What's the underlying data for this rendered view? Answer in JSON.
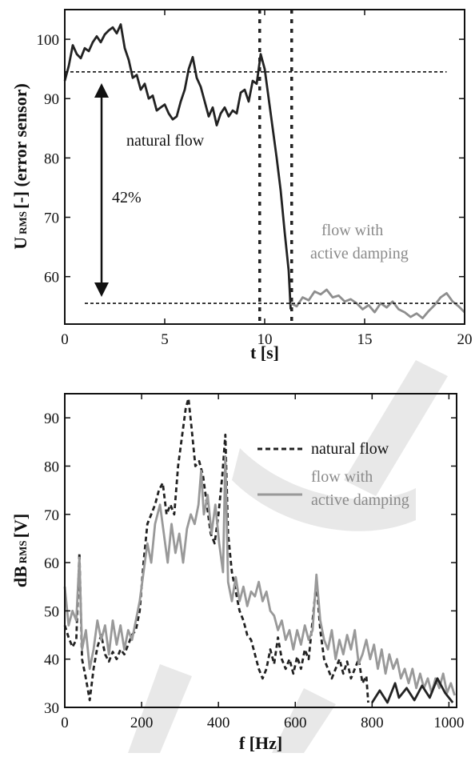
{
  "chart_data": [
    {
      "type": "line",
      "xlabel": "t [s]",
      "ylabel_main": "U",
      "ylabel_sub": "RMS",
      "ylabel_rest": "[-] (error sensor)",
      "xlim": [
        0,
        20
      ],
      "ylim": [
        52,
        105
      ],
      "xticks": [
        0,
        5,
        10,
        15,
        20
      ],
      "yticks": [
        60,
        70,
        80,
        90,
        100
      ],
      "grid": false,
      "reference_lines": {
        "upper": 94.5,
        "lower": 55.5,
        "control_on": 9.75,
        "control_settled": 11.35
      },
      "annotations": {
        "reduction": "42%",
        "natural": "natural flow",
        "damped_line1": "flow with",
        "damped_line2": "active damping"
      },
      "series": [
        {
          "color": "#222222",
          "x": [
            0,
            0.2,
            0.4,
            0.6,
            0.8,
            1.0,
            1.2,
            1.4,
            1.6,
            1.8,
            2.0,
            2.2,
            2.4,
            2.6,
            2.8,
            3.0,
            3.2,
            3.4,
            3.6,
            3.8,
            4.0,
            4.2,
            4.4,
            4.6,
            4.8,
            5.0,
            5.2,
            5.4,
            5.6,
            5.8,
            6.0,
            6.2,
            6.4,
            6.6,
            6.8,
            7.0,
            7.2,
            7.4,
            7.6,
            7.8,
            8.0,
            8.2,
            8.4,
            8.6,
            8.8,
            9.0,
            9.2,
            9.4,
            9.6,
            9.8,
            10.0,
            10.2,
            10.4,
            10.6,
            10.8,
            11.0,
            11.2,
            11.3
          ],
          "y": [
            93.0,
            95.5,
            99.0,
            97.5,
            96.8,
            98.5,
            98.0,
            99.5,
            100.5,
            99.5,
            100.8,
            101.5,
            102.0,
            101.0,
            102.5,
            98.5,
            96.5,
            93.5,
            94.0,
            91.5,
            92.5,
            90.0,
            90.5,
            88.0,
            88.5,
            89.0,
            87.5,
            86.5,
            87.0,
            89.5,
            91.5,
            95.0,
            97.0,
            93.5,
            92.0,
            89.5,
            87.0,
            88.5,
            85.5,
            87.5,
            88.5,
            87.0,
            88.0,
            87.5,
            91.0,
            91.5,
            89.5,
            93.0,
            92.5,
            97.5,
            95.0,
            90.0,
            85.0,
            80.0,
            74.5,
            67.5,
            61.0,
            54.5
          ]
        },
        {
          "color": "#8e8e8e",
          "x": [
            11.3,
            11.6,
            11.9,
            12.2,
            12.5,
            12.8,
            13.1,
            13.4,
            13.7,
            14.0,
            14.3,
            14.6,
            14.9,
            15.2,
            15.5,
            15.8,
            16.1,
            16.4,
            16.7,
            17.0,
            17.3,
            17.6,
            17.9,
            18.2,
            18.5,
            18.8,
            19.1,
            19.4,
            19.7,
            20.0
          ],
          "y": [
            55.5,
            55.0,
            56.5,
            56.0,
            57.5,
            57.0,
            57.8,
            56.5,
            56.8,
            55.8,
            56.2,
            55.5,
            54.5,
            55.2,
            54.0,
            55.5,
            54.8,
            55.8,
            54.5,
            54.0,
            53.2,
            53.8,
            53.0,
            54.2,
            55.2,
            56.5,
            57.2,
            55.8,
            55.0,
            54.0
          ]
        }
      ]
    },
    {
      "type": "line",
      "xlabel": "f [Hz]",
      "ylabel_main": "dB",
      "ylabel_sub": "RMS",
      "ylabel_rest": "[V]",
      "xlim": [
        0,
        1020
      ],
      "ylim": [
        30,
        95
      ],
      "xticks": [
        0,
        200,
        400,
        600,
        800,
        1000
      ],
      "yticks": [
        30,
        40,
        50,
        60,
        70,
        80,
        90
      ],
      "grid": false,
      "legend": "top-right",
      "series": [
        {
          "name": "natural flow",
          "style": "dashed",
          "color": "#222222",
          "x": [
            0,
            10,
            20,
            30,
            38,
            45,
            55,
            65,
            75,
            85,
            95,
            105,
            115,
            125,
            135,
            145,
            155,
            165,
            175,
            185,
            195,
            205,
            215,
            225,
            235,
            245,
            255,
            265,
            275,
            285,
            295,
            305,
            315,
            322,
            330,
            340,
            350,
            360,
            370,
            380,
            390,
            400,
            410,
            418,
            425,
            435,
            445,
            455,
            465,
            475,
            485,
            495,
            505,
            515,
            525,
            535,
            545,
            555,
            565,
            575,
            585,
            595,
            605,
            615,
            625,
            635,
            645,
            655,
            665,
            675,
            685,
            695,
            705,
            715,
            725,
            735,
            745,
            755,
            765,
            775,
            785,
            790
          ],
          "y": [
            47.0,
            44.5,
            42.5,
            44.0,
            62.0,
            40.0,
            36.0,
            31.5,
            38.0,
            42.5,
            45.0,
            41.0,
            39.5,
            41.5,
            40.0,
            42.0,
            41.0,
            43.0,
            45.0,
            46.0,
            50.0,
            60.0,
            68.0,
            70.0,
            72.0,
            75.0,
            76.5,
            70.0,
            72.0,
            70.0,
            80.0,
            86.0,
            92.0,
            94.0,
            88.0,
            80.0,
            81.0,
            78.0,
            72.0,
            66.0,
            64.0,
            70.0,
            78.0,
            86.5,
            66.0,
            58.0,
            54.0,
            50.0,
            48.0,
            45.0,
            44.0,
            41.0,
            38.0,
            36.0,
            38.0,
            42.0,
            39.0,
            44.5,
            40.0,
            38.0,
            40.0,
            37.0,
            40.5,
            38.0,
            42.0,
            40.0,
            48.0,
            56.0,
            46.0,
            40.0,
            38.0,
            36.0,
            38.0,
            40.0,
            37.0,
            39.5,
            36.0,
            38.0,
            40.0,
            35.0,
            36.5,
            31.0
          ]
        },
        {
          "name": "flow with active damping",
          "style": "solid",
          "color": "#999999",
          "x": [
            0,
            10,
            20,
            30,
            38,
            45,
            55,
            65,
            75,
            85,
            95,
            105,
            115,
            125,
            135,
            145,
            155,
            165,
            175,
            185,
            195,
            205,
            215,
            225,
            235,
            248,
            258,
            268,
            278,
            288,
            298,
            308,
            318,
            328,
            338,
            348,
            355,
            362,
            372,
            382,
            392,
            402,
            412,
            418,
            425,
            435,
            445,
            455,
            465,
            475,
            485,
            495,
            505,
            515,
            525,
            535,
            545,
            555,
            565,
            575,
            585,
            595,
            605,
            615,
            625,
            635,
            645,
            655,
            665,
            675,
            685,
            695,
            705,
            715,
            725,
            735,
            745,
            755,
            765,
            775,
            785,
            795,
            805,
            815,
            825,
            835,
            845,
            855,
            865,
            875,
            885,
            895,
            905,
            915,
            925,
            935,
            945,
            955,
            965,
            975,
            985,
            995,
            1005,
            1015
          ],
          "y": [
            55.0,
            47.0,
            50.0,
            48.0,
            61.0,
            42.0,
            46.0,
            38.0,
            42.0,
            48.0,
            44.0,
            47.0,
            41.0,
            48.0,
            43.0,
            47.0,
            42.0,
            46.0,
            44.0,
            48.0,
            52.0,
            58.0,
            64.0,
            60.0,
            68.0,
            72.0,
            66.0,
            60.0,
            68.0,
            62.0,
            66.0,
            60.0,
            67.0,
            70.0,
            68.0,
            72.0,
            79.0,
            70.0,
            74.0,
            66.0,
            72.0,
            64.0,
            58.0,
            82.0,
            56.0,
            52.0,
            57.0,
            52.0,
            55.0,
            51.0,
            54.0,
            53.0,
            56.0,
            52.0,
            54.0,
            50.0,
            49.0,
            46.0,
            48.0,
            44.0,
            46.0,
            42.0,
            46.0,
            43.0,
            47.0,
            44.0,
            46.0,
            57.5,
            48.0,
            44.0,
            42.0,
            46.0,
            40.0,
            44.0,
            41.0,
            45.0,
            42.0,
            46.0,
            39.0,
            41.0,
            44.0,
            40.0,
            43.0,
            38.0,
            42.0,
            37.0,
            41.0,
            38.0,
            40.0,
            36.0,
            38.0,
            35.0,
            38.0,
            34.0,
            37.0,
            34.0,
            36.0,
            33.0,
            36.0,
            34.0,
            37.0,
            33.0,
            35.0,
            32.5
          ]
        },
        {
          "color": "#222222",
          "style": "solid",
          "x": [
            800,
            820,
            840,
            860,
            870,
            890,
            910,
            930,
            950,
            970,
            990,
            1010
          ],
          "y": [
            31.0,
            33.5,
            31.0,
            35.0,
            32.0,
            34.0,
            31.5,
            34.5,
            32.0,
            36.0,
            33.0,
            31.0
          ]
        }
      ]
    }
  ]
}
